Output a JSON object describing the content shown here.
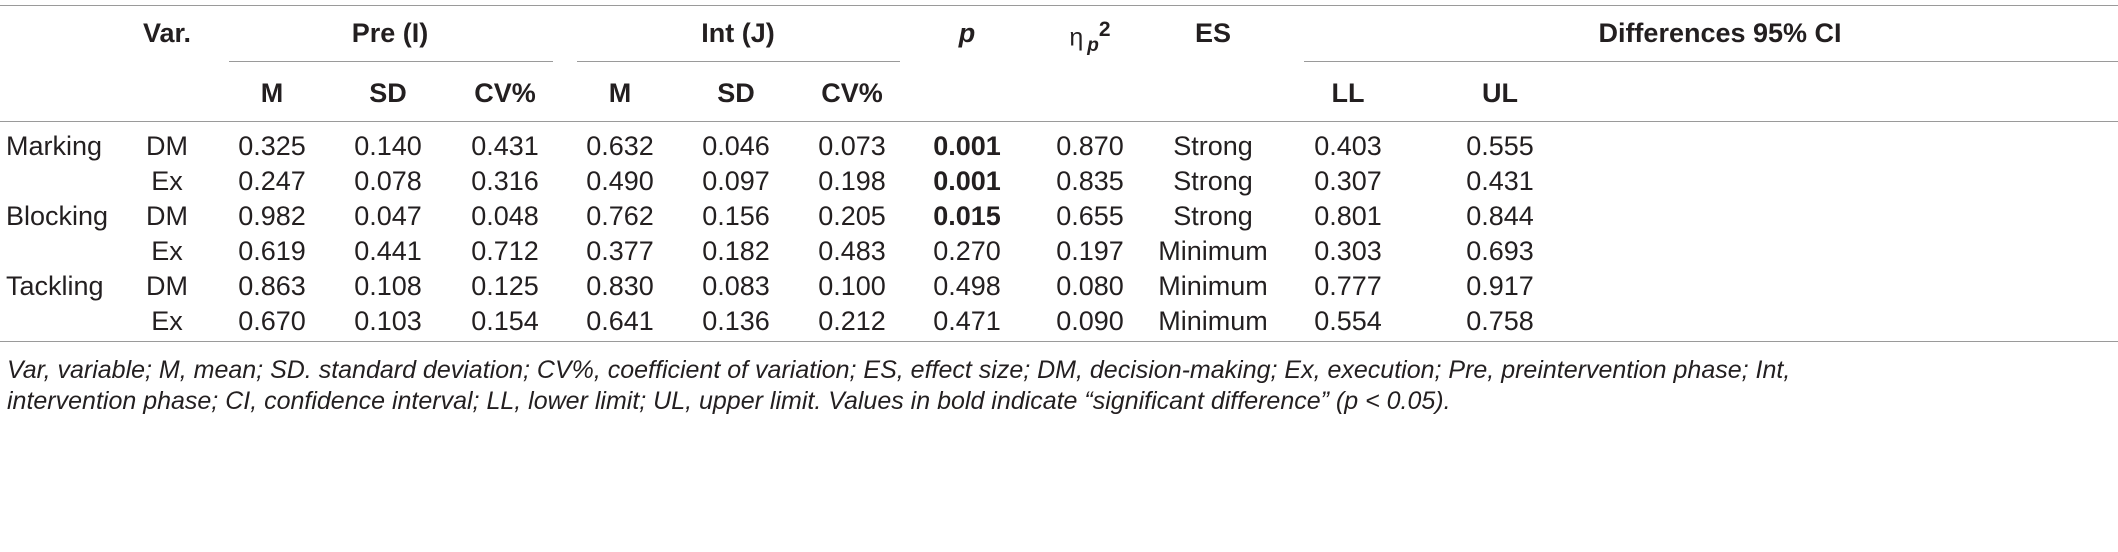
{
  "table": {
    "headers": {
      "var": "Var.",
      "pre": "Pre (I)",
      "int": "Int (J)",
      "p": "p",
      "eta_base": "η",
      "eta_sub": "p",
      "eta_sup": "2",
      "es": "ES",
      "diff": "Differences 95% CI",
      "pre_m": "M",
      "pre_sd": "SD",
      "pre_cv": "CV%",
      "int_m": "M",
      "int_sd": "SD",
      "int_cv": "CV%",
      "ll": "LL",
      "ul": "UL"
    },
    "rows": [
      {
        "group": "Marking",
        "var": "DM",
        "pre_m": "0.325",
        "pre_sd": "0.140",
        "pre_cv": "0.431",
        "int_m": "0.632",
        "int_sd": "0.046",
        "int_cv": "0.073",
        "p": "0.001",
        "p_bold": true,
        "eta": "0.870",
        "es": "Strong",
        "ll": "0.403",
        "ul": "0.555"
      },
      {
        "group": "",
        "var": "Ex",
        "pre_m": "0.247",
        "pre_sd": "0.078",
        "pre_cv": "0.316",
        "int_m": "0.490",
        "int_sd": "0.097",
        "int_cv": "0.198",
        "p": "0.001",
        "p_bold": true,
        "eta": "0.835",
        "es": "Strong",
        "ll": "0.307",
        "ul": "0.431"
      },
      {
        "group": "Blocking",
        "var": "DM",
        "pre_m": "0.982",
        "pre_sd": "0.047",
        "pre_cv": "0.048",
        "int_m": "0.762",
        "int_sd": "0.156",
        "int_cv": "0.205",
        "p": "0.015",
        "p_bold": true,
        "eta": "0.655",
        "es": "Strong",
        "ll": "0.801",
        "ul": "0.844"
      },
      {
        "group": "",
        "var": "Ex",
        "pre_m": "0.619",
        "pre_sd": "0.441",
        "pre_cv": "0.712",
        "int_m": "0.377",
        "int_sd": "0.182",
        "int_cv": "0.483",
        "p": "0.270",
        "p_bold": false,
        "eta": "0.197",
        "es": "Minimum",
        "ll": "0.303",
        "ul": "0.693"
      },
      {
        "group": "Tackling",
        "var": "DM",
        "pre_m": "0.863",
        "pre_sd": "0.108",
        "pre_cv": "0.125",
        "int_m": "0.830",
        "int_sd": "0.083",
        "int_cv": "0.100",
        "p": "0.498",
        "p_bold": false,
        "eta": "0.080",
        "es": "Minimum",
        "ll": "0.777",
        "ul": "0.917"
      },
      {
        "group": "",
        "var": "Ex",
        "pre_m": "0.670",
        "pre_sd": "0.103",
        "pre_cv": "0.154",
        "int_m": "0.641",
        "int_sd": "0.136",
        "int_cv": "0.212",
        "p": "0.471",
        "p_bold": false,
        "eta": "0.090",
        "es": "Minimum",
        "ll": "0.554",
        "ul": "0.758"
      }
    ]
  },
  "footnote": {
    "line1": "Var, variable; M, mean; SD. standard deviation; CV%, coefficient of variation; ES, effect size; DM, decision-making; Ex, execution; Pre, preintervention phase; Int,",
    "line2": "intervention phase; CI, confidence interval; LL, lower limit; UL, upper limit. Values in bold indicate “significant difference” (p < 0.05)."
  }
}
